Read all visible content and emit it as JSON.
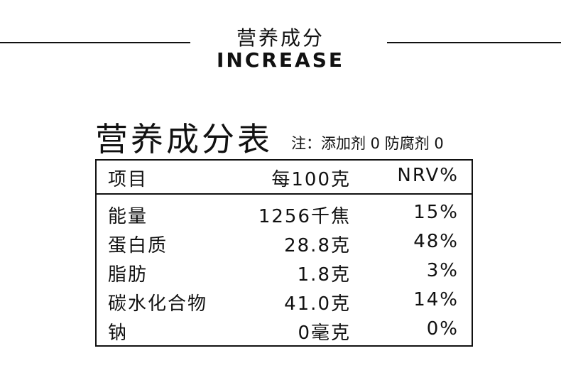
{
  "header": {
    "title": "营养成分",
    "subtitle": "INCREASE"
  },
  "table": {
    "title": "营养成分表",
    "note": "注：添加剂 0  防腐剂 0",
    "columns": [
      "项目",
      "每100克",
      "NRV%"
    ],
    "rows": [
      [
        "能量",
        "1256千焦",
        "15%"
      ],
      [
        "蛋白质",
        "28.8克",
        "48%"
      ],
      [
        "脂肪",
        "1.8克",
        "3%"
      ],
      [
        "碳水化合物",
        "41.0克",
        "14%"
      ],
      [
        "钠",
        "0毫克",
        "0%"
      ]
    ]
  }
}
